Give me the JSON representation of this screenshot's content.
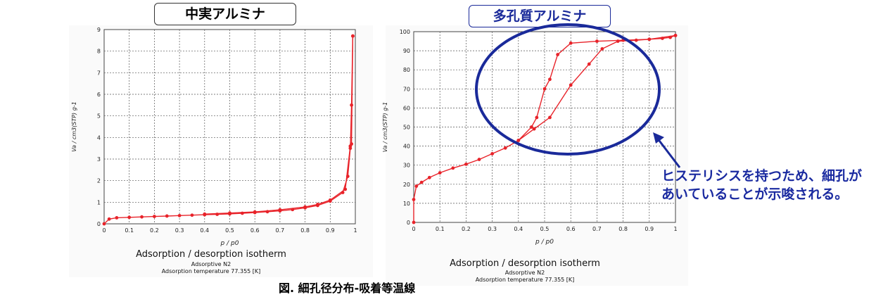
{
  "labels": {
    "left_title": "中実アルミナ",
    "right_title": "多孔質アルミナ",
    "note": "ヒステリシスを持つため、細孔があいていることが示唆される。",
    "caption": "図. 細孔径分布-吸着等温線"
  },
  "colors": {
    "series": "#e8232a",
    "note": "#1a2aa0",
    "ellipse": "#1a2a9a"
  },
  "chart_data": [
    {
      "type": "line",
      "title": "Adsorption / desorption isotherm",
      "subtitle_lines": [
        "Adsorptive N2",
        "Adsorption temperature 77.355 [K]"
      ],
      "xlabel": "p / p0",
      "ylabel": "Va / cm3(STP) g-1",
      "xlim": [
        0,
        1
      ],
      "ylim": [
        0,
        9
      ],
      "xticks": [
        "0",
        "0.1",
        "0.2",
        "0.3",
        "0.4",
        "0.5",
        "0.6",
        "0.7",
        "0.8",
        "0.9",
        "1"
      ],
      "yticks": [
        "0",
        "1",
        "2",
        "3",
        "4",
        "5",
        "6",
        "7",
        "8",
        "9"
      ],
      "grid": true,
      "series": [
        {
          "x": [
            0,
            0.02,
            0.05,
            0.1,
            0.15,
            0.2,
            0.25,
            0.3,
            0.35,
            0.4,
            0.45,
            0.5,
            0.55,
            0.6,
            0.65,
            0.7,
            0.75,
            0.8,
            0.85,
            0.9,
            0.95,
            0.97,
            0.98,
            0.985,
            0.99
          ],
          "y": [
            0,
            0.22,
            0.28,
            0.3,
            0.32,
            0.34,
            0.36,
            0.38,
            0.4,
            0.42,
            0.44,
            0.46,
            0.49,
            0.52,
            0.56,
            0.6,
            0.66,
            0.74,
            0.85,
            1.05,
            1.45,
            2.2,
            3.5,
            5.5,
            8.7
          ]
        },
        {
          "x": [
            0.99,
            0.985,
            0.98,
            0.96,
            0.9,
            0.85,
            0.8,
            0.7,
            0.6,
            0.5,
            0.4
          ],
          "y": [
            8.7,
            3.7,
            3.6,
            1.6,
            1.1,
            0.9,
            0.78,
            0.65,
            0.55,
            0.5,
            0.45
          ]
        }
      ]
    },
    {
      "type": "line",
      "title": "Adsorption / desorption isotherm",
      "subtitle_lines": [
        "Adsorptive N2",
        "Adsorption temperature 77.355 [K]"
      ],
      "xlabel": "p / p0",
      "ylabel": "Va / cm3(STP) g-1",
      "xlim": [
        0,
        1
      ],
      "ylim": [
        0,
        100
      ],
      "xticks": [
        "0",
        "0.1",
        "0.2",
        "0.3",
        "0.4",
        "0.5",
        "0.6",
        "0.7",
        "0.8",
        "0.9",
        "1"
      ],
      "yticks": [
        "0",
        "10",
        "20",
        "30",
        "40",
        "50",
        "60",
        "70",
        "80",
        "90",
        "100"
      ],
      "grid": true,
      "series": [
        {
          "x": [
            0,
            0.0,
            0.01,
            0.03,
            0.06,
            0.1,
            0.15,
            0.2,
            0.25,
            0.3,
            0.35,
            0.4,
            0.46,
            0.52,
            0.6,
            0.67,
            0.72,
            0.78,
            0.85,
            0.9,
            0.95,
            0.98,
            1.0
          ],
          "y": [
            0,
            12,
            19,
            21,
            23.5,
            26,
            28.5,
            30.5,
            33,
            36,
            39,
            43,
            49,
            55,
            72,
            83,
            91,
            95,
            95.5,
            96,
            96.5,
            97,
            98
          ]
        },
        {
          "x": [
            1.0,
            0.9,
            0.8,
            0.7,
            0.6,
            0.55,
            0.52,
            0.5,
            0.47,
            0.45,
            0.4
          ],
          "y": [
            98,
            96,
            95.5,
            95,
            94,
            88,
            75,
            70,
            55,
            50,
            43
          ]
        }
      ]
    }
  ]
}
